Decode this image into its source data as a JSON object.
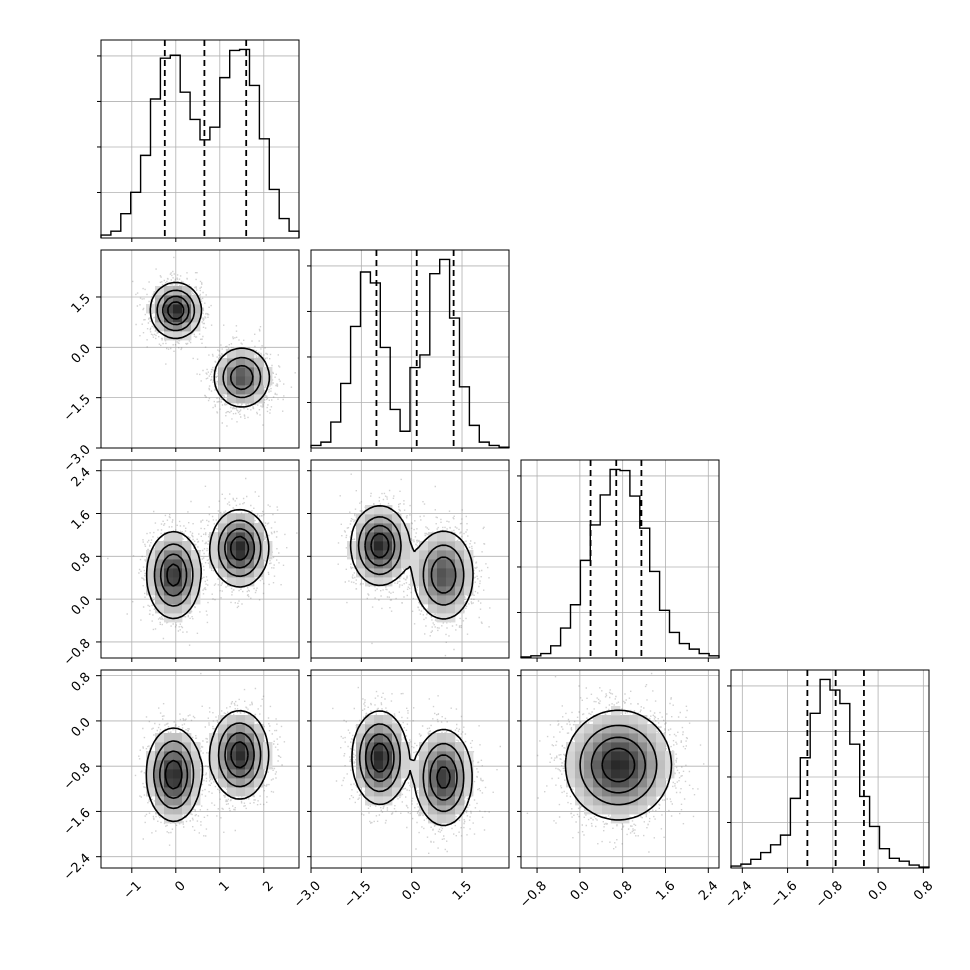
{
  "chart_data": {
    "type": "corner",
    "params": [
      {
        "name": "",
        "range": [
          -1.7,
          2.8
        ],
        "ticks": [
          -1,
          0,
          1,
          2
        ],
        "tick_labels": [
          "−1",
          "0",
          "1",
          "2"
        ],
        "quantiles": [
          -0.25,
          0.65,
          1.6
        ],
        "hist": {
          "bins_lo": -1.7,
          "bin_width": 0.225,
          "counts": [
            3,
            7,
            25,
            47,
            85,
            143,
            185,
            188,
            150,
            122,
            101,
            114,
            165,
            193,
            194,
            157,
            102,
            50,
            20,
            7
          ]
        }
      },
      {
        "name": "",
        "range": [
          -3.0,
          2.9
        ],
        "ticks": [
          -3.0,
          -1.5,
          0.0,
          1.5
        ],
        "tick_labels": [
          "−3.0",
          "−1.5",
          "0.0",
          "1.5"
        ],
        "quantiles": [
          -1.05,
          0.15,
          1.25
        ],
        "hist": {
          "bins_lo": -3.0,
          "bin_width": 0.295,
          "counts": [
            3,
            7,
            31,
            77,
            145,
            210,
            197,
            120,
            46,
            20,
            96,
            111,
            208,
            225,
            155,
            73,
            27,
            7,
            3,
            1
          ]
        }
      },
      {
        "name": "",
        "range": [
          -1.1,
          2.6
        ],
        "ticks": [
          -0.8,
          0.0,
          0.8,
          1.6,
          2.4
        ],
        "tick_labels": [
          "−0.8",
          "0.0",
          "0.8",
          "1.6",
          "2.4"
        ],
        "quantiles": [
          0.2,
          0.68,
          1.15
        ],
        "hist": {
          "bins_lo": -1.1,
          "bin_width": 0.185,
          "counts": [
            1,
            2,
            4,
            11,
            27,
            48,
            88,
            120,
            147,
            170,
            169,
            146,
            117,
            78,
            43,
            23,
            13,
            8,
            4,
            2
          ]
        }
      },
      {
        "name": "",
        "range": [
          -2.6,
          0.9
        ],
        "ticks": [
          -2.4,
          -1.6,
          -0.8,
          0.0,
          0.8
        ],
        "tick_labels": [
          "−2.4",
          "−1.6",
          "−0.8",
          "0.0",
          "0.8"
        ],
        "quantiles": [
          -1.25,
          -0.75,
          -0.25
        ],
        "hist": {
          "bins_lo": -2.6,
          "bin_width": 0.175,
          "counts": [
            2,
            4,
            9,
            16,
            24,
            34,
            72,
            114,
            160,
            195,
            184,
            170,
            128,
            74,
            43,
            20,
            10,
            7,
            3,
            1
          ]
        }
      }
    ],
    "pairs": [
      {
        "x": 0,
        "y": 1,
        "modes": [
          {
            "cx": 0.0,
            "cy": 1.1,
            "sx": 0.28,
            "sy": 0.4,
            "rho": 0.0,
            "w": 0.5
          },
          {
            "cx": 1.5,
            "cy": -0.9,
            "sx": 0.32,
            "sy": 0.45,
            "rho": 0.0,
            "w": 0.5
          }
        ]
      },
      {
        "x": 0,
        "y": 2,
        "modes": [
          {
            "cx": -0.05,
            "cy": 0.45,
            "sx": 0.3,
            "sy": 0.4,
            "rho": 0.0,
            "w": 0.5
          },
          {
            "cx": 1.45,
            "cy": 0.95,
            "sx": 0.32,
            "sy": 0.35,
            "rho": 0.0,
            "w": 0.5
          }
        ]
      },
      {
        "x": 1,
        "y": 2,
        "modes": [
          {
            "cx": -0.95,
            "cy": 1.0,
            "sx": 0.42,
            "sy": 0.36,
            "rho": 0.0,
            "w": 0.5
          },
          {
            "cx": 0.95,
            "cy": 0.45,
            "sx": 0.45,
            "sy": 0.42,
            "rho": 0.0,
            "w": 0.5
          }
        ]
      },
      {
        "x": 0,
        "y": 3,
        "modes": [
          {
            "cx": -0.05,
            "cy": -0.95,
            "sx": 0.3,
            "sy": 0.4,
            "rho": 0.0,
            "w": 0.5
          },
          {
            "cx": 1.45,
            "cy": -0.6,
            "sx": 0.32,
            "sy": 0.38,
            "rho": 0.0,
            "w": 0.5
          }
        ]
      },
      {
        "x": 1,
        "y": 3,
        "modes": [
          {
            "cx": -0.95,
            "cy": -0.65,
            "sx": 0.4,
            "sy": 0.4,
            "rho": 0.0,
            "w": 0.5
          },
          {
            "cx": 0.95,
            "cy": -1.0,
            "sx": 0.42,
            "sy": 0.42,
            "rho": 0.0,
            "w": 0.5
          }
        ]
      },
      {
        "x": 2,
        "y": 3,
        "modes": [
          {
            "cx": 0.72,
            "cy": -0.78,
            "sx": 0.48,
            "sy": 0.47,
            "rho": 0.0,
            "w": 1.0
          }
        ]
      }
    ],
    "grid": true,
    "legend": "none"
  }
}
